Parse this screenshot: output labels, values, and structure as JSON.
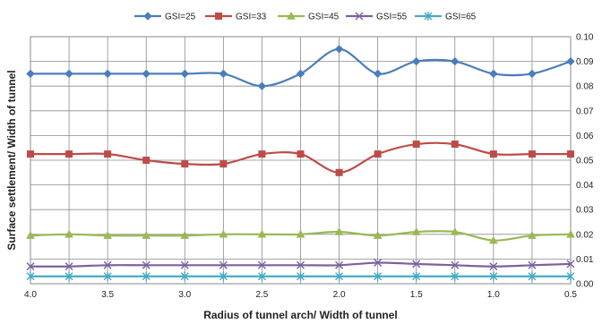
{
  "chart_data": {
    "type": "line",
    "title": "",
    "xlabel": "Radius of tunnel arch/ Width of tunnel",
    "ylabel": "Surface settlement/ Width of tunnel",
    "x": [
      4.0,
      3.75,
      3.5,
      3.25,
      3.0,
      2.75,
      2.5,
      2.25,
      2.0,
      1.75,
      1.5,
      1.25,
      1.0,
      0.75,
      0.5
    ],
    "xlim": [
      4.0,
      0.5
    ],
    "x_reversed": true,
    "x_ticks": [
      "4.0",
      "3.5",
      "3.0",
      "2.5",
      "2.0",
      "1.5",
      "1.0",
      "0.5"
    ],
    "ylim": [
      0,
      0.1
    ],
    "y_ticks": [
      "0.00",
      "0.01",
      "0.02",
      "0.03",
      "0.04",
      "0.05",
      "0.06",
      "0.07",
      "0.08",
      "0.09",
      "0.10"
    ],
    "y_axis_side": "right",
    "grid": true,
    "legend_position": "top",
    "series": [
      {
        "name": "GSI=25",
        "color": "#4a7ebb",
        "marker": "diamond",
        "values": [
          0.085,
          0.085,
          0.085,
          0.085,
          0.085,
          0.085,
          0.08,
          0.085,
          0.095,
          0.085,
          0.09,
          0.09,
          0.085,
          0.085,
          0.09
        ]
      },
      {
        "name": "GSI=33",
        "color": "#be4b48",
        "marker": "square",
        "values": [
          0.0525,
          0.0525,
          0.0525,
          0.05,
          0.0485,
          0.0485,
          0.0525,
          0.0525,
          0.045,
          0.0525,
          0.0565,
          0.0565,
          0.0525,
          0.0525,
          0.0525
        ]
      },
      {
        "name": "GSI=45",
        "color": "#98b954",
        "marker": "triangle",
        "values": [
          0.0195,
          0.02,
          0.0195,
          0.0195,
          0.0195,
          0.02,
          0.02,
          0.02,
          0.021,
          0.0195,
          0.021,
          0.021,
          0.0175,
          0.0195,
          0.02
        ]
      },
      {
        "name": "GSI=55",
        "color": "#7d60a0",
        "marker": "x",
        "values": [
          0.007,
          0.007,
          0.0075,
          0.0075,
          0.0075,
          0.0075,
          0.0075,
          0.0075,
          0.0075,
          0.0085,
          0.008,
          0.0075,
          0.007,
          0.0075,
          0.008
        ]
      },
      {
        "name": "GSI=65",
        "color": "#46aac5",
        "marker": "asterisk",
        "values": [
          0.003,
          0.003,
          0.003,
          0.003,
          0.003,
          0.003,
          0.003,
          0.003,
          0.003,
          0.003,
          0.003,
          0.003,
          0.003,
          0.003,
          0.003
        ]
      }
    ]
  }
}
